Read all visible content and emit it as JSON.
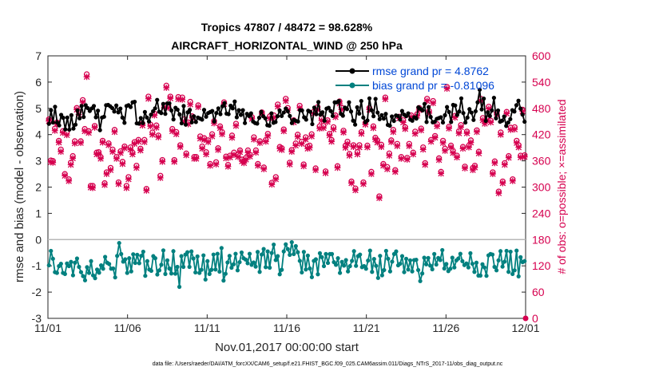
{
  "chart_data": {
    "type": "line",
    "title_line1": "Tropics 47807 / 48472 = 98.628%",
    "title_line2": "AIRCRAFT_HORIZONTAL_WIND @ 250 hPa",
    "xlabel": "Nov.01,2017 00:00:00 start",
    "ylabel_left": "rmse and bias (model - observation)",
    "ylabel_right": "# of obs: o=possible; ×=assimilated",
    "xlim": [
      0,
      30
    ],
    "ylim_left": [
      -3,
      7
    ],
    "ylim_right": [
      0,
      600
    ],
    "x_ticks": [
      0,
      5,
      10,
      15,
      20,
      25,
      30
    ],
    "x_tick_labels": [
      "11/01",
      "11/06",
      "11/11",
      "11/16",
      "11/21",
      "11/26",
      "12/01"
    ],
    "y_ticks_left": [
      "-3",
      "-2",
      "-1",
      "0",
      "1",
      "2",
      "3",
      "4",
      "5",
      "6",
      "7"
    ],
    "y_ticks_right": [
      "0",
      "60",
      "120",
      "180",
      "240",
      "300",
      "360",
      "420",
      "480",
      "540",
      "600"
    ],
    "footer": "data file: /Users/raeder/DAI/ATM_forcXX/CAM6_setup/f.e21.FHIST_BGC.f09_025.CAM6assim.011/Diags_NTrS_2017-11/obs_diag_output.nc",
    "series": [
      {
        "name": "rmse grand pr = 4.8762",
        "color": "#000000",
        "values": [
          4.41,
          4.93,
          4.46,
          5.06,
          4.46,
          4.35,
          4.75,
          4.64,
          4.2,
          4.65,
          4.19,
          4.74,
          4.23,
          4.38,
          4.92,
          4.62,
          5.09,
          4.67,
          5.12,
          5.01,
          4.9,
          5.0,
          5.09,
          4.66,
          4.91,
          4.17,
          4.65,
          4.68,
          5.12,
          5.13,
          5.08,
          5.01,
          4.88,
          5.11,
          4.85,
          4.99,
          4.65,
          4.45,
          5.09,
          5.12,
          5.05,
          5.23,
          5.25,
          4.43,
          4.42,
          4.63,
          4.44,
          4.86,
          4.65,
          4.5,
          4.76,
          4.89,
          5.0,
          5.32,
          4.87,
          4.82,
          5.17,
          4.79,
          5.19,
          5.19,
          4.92,
          4.58,
          5.02,
          4.95,
          4.77,
          4.43,
          5.09,
          4.38,
          4.85,
          4.94,
          4.47,
          4.7,
          4.48,
          4.65,
          4.61,
          4.57,
          4.94,
          4.68,
          4.82,
          4.86,
          4.9,
          4.5,
          4.82,
          5.0,
          4.78,
          5.08,
          5.2,
          4.8,
          4.78,
          5.1,
          5.0,
          5.26,
          4.66,
          4.93,
          4.75,
          4.93,
          4.44,
          4.79,
          4.71,
          4.81,
          4.5,
          4.44,
          4.42,
          4.64,
          4.87,
          4.7,
          4.62,
          4.36,
          4.34,
          4.81,
          4.45,
          4.48,
          4.7,
          4.92,
          4.71,
          4.84,
          4.99,
          4.89,
          4.71,
          4.44,
          4.56,
          4.52,
          4.5,
          4.93,
          4.92,
          4.66,
          4.57,
          4.91,
          4.87,
          4.4,
          5.03,
          4.78,
          5.24,
          4.76,
          4.85,
          4.53,
          4.99,
          5.02,
          4.9,
          4.71,
          5.23,
          5.23,
          5.28,
          4.79,
          4.72,
          5.03,
          4.97,
          5.23,
          4.88,
          4.53,
          4.38,
          5.04,
          4.8,
          5.28,
          4.65,
          4.47,
          4.54,
          5.38,
          4.93,
          4.7,
          5.36,
          4.84,
          4.59,
          4.74,
          4.61,
          4.79,
          4.37,
          4.34,
          4.69,
          4.52,
          4.73,
          4.71,
          4.57,
          4.9,
          4.76,
          4.7,
          4.81,
          4.57,
          4.53,
          4.66,
          4.61,
          5.04,
          4.98,
          4.92,
          5.17,
          4.48,
          5.05,
          4.67,
          4.47,
          4.49,
          4.6,
          4.63,
          4.66,
          4.46,
          4.74,
          5.05,
          4.86,
          4.48,
          5.13,
          5.11,
          4.75,
          4.88,
          5.38,
          4.82,
          4.46,
          4.65,
          4.97,
          4.84,
          4.56,
          4.89,
          5.23,
          5.71,
          4.96,
          5.37,
          4.52,
          4.85,
          4.71,
          4.92,
          5.4,
          4.62,
          4.92,
          4.49,
          4.53,
          4.69,
          4.33,
          4.46,
          4.59,
          4.93,
          4.88,
          5.12,
          5.29,
          4.99,
          4.76,
          4.49
        ]
      },
      {
        "name": "bias grand pr = -0.81096",
        "color": "#00807f",
        "values": [
          -0.98,
          -0.43,
          -0.73,
          -1.24,
          -1.27,
          -1.01,
          -0.92,
          -1.27,
          -1.31,
          -0.91,
          -1.01,
          -0.85,
          -1.36,
          -0.88,
          -0.72,
          -1.04,
          -1.24,
          -1.39,
          -1.55,
          -1.05,
          -1.27,
          -0.82,
          -1.36,
          -1.47,
          -1.14,
          -1.26,
          -0.98,
          -1.11,
          -0.66,
          -0.88,
          -0.93,
          -1.11,
          -1.1,
          -1.44,
          -0.62,
          -0.13,
          -0.55,
          -0.84,
          -0.75,
          -1.27,
          -0.71,
          -1.21,
          -0.56,
          -0.89,
          -0.58,
          -0.9,
          -0.62,
          -0.46,
          -1.38,
          -0.82,
          -1.14,
          -1.19,
          -0.63,
          -0.71,
          -1.33,
          -1.17,
          -0.96,
          -0.41,
          -1.31,
          -0.79,
          -1.1,
          -1.29,
          -0.44,
          -1.3,
          -1.04,
          -1.8,
          -0.63,
          -1.04,
          -0.57,
          -0.48,
          -1.04,
          -0.45,
          -0.72,
          -1.25,
          -0.64,
          -1.27,
          -1.15,
          -0.6,
          -1.52,
          -0.82,
          -1.31,
          -1.15,
          -0.57,
          -1.14,
          -0.54,
          -1.22,
          -0.32,
          -1.56,
          -1.3,
          -0.87,
          -0.62,
          -1.07,
          -0.94,
          -0.54,
          -1.17,
          -0.86,
          -0.49,
          -0.71,
          -0.76,
          -0.9,
          -0.54,
          -0.96,
          -0.87,
          -1.03,
          -0.47,
          -1.23,
          -0.57,
          -0.36,
          -1.05,
          -0.45,
          -1.07,
          -0.51,
          -0.19,
          -0.78,
          -0.63,
          -1.32,
          -1.15,
          -0.45,
          -0.18,
          -0.36,
          -0.58,
          -0.1,
          -0.55,
          -0.25,
          -0.48,
          -0.81,
          -1.25,
          -0.47,
          -1.14,
          -0.61,
          -1.1,
          -1.43,
          -0.81,
          -0.75,
          -1.32,
          -0.52,
          -0.67,
          -1.01,
          -0.55,
          -0.89,
          -0.55,
          -0.55,
          -0.86,
          -0.96,
          -0.71,
          -1.27,
          -0.85,
          -0.99,
          -0.78,
          -1.21,
          -1.01,
          -0.81,
          -0.44,
          -1.0,
          -0.63,
          -0.57,
          -1.05,
          -1.01,
          -1.11,
          -0.8,
          -0.42,
          -1.23,
          -0.74,
          -1.0,
          -1.46,
          -0.62,
          -1.36,
          -1.16,
          -0.43,
          -0.73,
          -1.21,
          -0.84,
          -0.55,
          -0.45,
          -0.98,
          -0.92,
          -0.63,
          -1.24,
          -0.73,
          -1.14,
          -0.79,
          -1.21,
          -0.78,
          -0.77,
          -1.16,
          -1.58,
          -1.29,
          -0.69,
          -0.94,
          -0.7,
          -0.99,
          -1.13,
          -0.55,
          -0.95,
          -0.7,
          -0.78,
          -0.4,
          -1.1,
          -0.93,
          -1.2,
          -1.11,
          -0.69,
          -1.06,
          -0.79,
          -0.72,
          -0.54,
          -0.82,
          -0.97,
          -0.91,
          -1.06,
          -0.52,
          -0.92,
          -1.23,
          -0.88,
          -1.37,
          -1.37,
          -0.94,
          -1.06,
          -1.38,
          -0.6,
          -0.55,
          -0.57,
          -1.04,
          -1.17,
          -0.79,
          -0.44,
          -1.03,
          -0.84,
          -0.43,
          -1.23,
          -0.46,
          -1.31,
          -1.17,
          -0.42,
          -1.4,
          -0.67,
          -0.86,
          -0.82
        ]
      },
      {
        "name": "obs possible",
        "color": "#d6004f",
        "values": [
          455,
          361,
          360,
          434,
          448,
          406,
          386,
          428,
          330,
          425,
          318,
          356,
          371,
          405,
          481,
          472,
          405,
          499,
          433,
          558,
          428,
          303,
          303,
          440,
          379,
          380,
          369,
          406,
          309,
          334,
          400,
          344,
          386,
          431,
          369,
          311,
          382,
          358,
          393,
          303,
          323,
          391,
          379,
          403,
          349,
          408,
          388,
          445,
          408,
          296,
          507,
          443,
          425,
          468,
          441,
          418,
          326,
          362,
          487,
          532,
          486,
          507,
          433,
          362,
          426,
          506,
          396,
          505,
          455,
          377,
          448,
          495,
          462,
          369,
          369,
          487,
          416,
          393,
          412,
          380,
          407,
          353,
          421,
          451,
          357,
          389,
          439,
          426,
          494,
          370,
          351,
          372,
          418,
          379,
          445,
          374,
          384,
          363,
          359,
          367,
          384,
          374,
          460,
          414,
          384,
          353,
          405,
          471,
          345,
          408,
          422,
          462,
          310,
          464,
          323,
          489,
          392,
          389,
          432,
          502,
          481,
          356,
          385,
          453,
          400,
          420,
          486,
          404,
          352,
          414,
          393,
          395,
          421,
          472,
          343,
          483,
          439,
          457,
          440,
          336,
          453,
          422,
          408,
          437,
          464,
          348,
          496,
          482,
          429,
          395,
          404,
          376,
          313,
          396,
          297,
          380,
          396,
          426,
          311,
          447,
          395,
          481,
          335,
          439,
          413,
          407,
          279,
          397,
          353,
          505,
          346,
          377,
          407,
          431,
          339,
          399,
          461,
          369,
          453,
          437,
          367,
          399,
          464,
          379,
          427,
          467,
          481,
          434,
          391,
          355,
          502,
          474,
          408,
          497,
          417,
          444,
          366,
          335,
          406,
          388,
          529,
          438,
          395,
          383,
          463,
          372,
          428,
          442,
          392,
          347,
          427,
          395,
          407,
          344,
          349,
          430,
          381,
          502,
          458,
          450,
          457,
          484,
          452,
          334,
          359,
          470,
          290,
          425,
          313,
          355,
          472,
          371,
          436,
          318,
          437,
          406,
          396,
          372,
          477,
          373
        ]
      },
      {
        "name": "obs assimilated",
        "color": "#d6004f",
        "values": [
          451,
          357,
          356,
          429,
          444,
          402,
          381,
          424,
          326,
          419,
          314,
          351,
          366,
          400,
          477,
          466,
          401,
          494,
          428,
          552,
          424,
          299,
          298,
          436,
          375,
          376,
          365,
          402,
          305,
          330,
          396,
          339,
          381,
          426,
          365,
          307,
          378,
          353,
          389,
          298,
          318,
          386,
          375,
          399,
          344,
          404,
          384,
          441,
          403,
          292,
          502,
          439,
          420,
          464,
          436,
          414,
          321,
          358,
          482,
          527,
          481,
          503,
          428,
          358,
          421,
          501,
          392,
          500,
          450,
          373,
          444,
          489,
          458,
          365,
          365,
          483,
          411,
          388,
          408,
          375,
          403,
          349,
          416,
          446,
          352,
          385,
          435,
          421,
          490,
          366,
          347,
          368,
          413,
          374,
          440,
          369,
          380,
          359,
          355,
          363,
          379,
          370,
          456,
          409,
          379,
          349,
          401,
          467,
          341,
          404,
          417,
          457,
          306,
          459,
          318,
          484,
          388,
          385,
          428,
          497,
          476,
          352,
          381,
          448,
          395,
          415,
          481,
          399,
          348,
          409,
          388,
          390,
          416,
          468,
          339,
          477,
          434,
          452,
          435,
          332,
          449,
          418,
          404,
          432,
          460,
          344,
          491,
          477,
          425,
          390,
          399,
          372,
          309,
          392,
          293,
          375,
          391,
          422,
          307,
          443,
          391,
          477,
          330,
          435,
          409,
          402,
          275,
          392,
          349,
          501,
          341,
          372,
          403,
          426,
          335,
          394,
          457,
          365,
          448,
          433,
          363,
          394,
          460,
          375,
          422,
          463,
          476,
          430,
          386,
          351,
          497,
          469,
          404,
          492,
          413,
          439,
          362,
          331,
          401,
          383,
          525,
          434,
          391,
          378,
          459,
          368,
          423,
          437,
          388,
          343,
          423,
          391,
          402,
          339,
          345,
          426,
          377,
          497,
          453,
          445,
          453,
          479,
          448,
          330,
          355,
          465,
          286,
          420,
          309,
          351,
          468,
          367,
          431,
          314,
          432,
          401,
          391,
          368,
          473,
          369
        ]
      }
    ]
  }
}
